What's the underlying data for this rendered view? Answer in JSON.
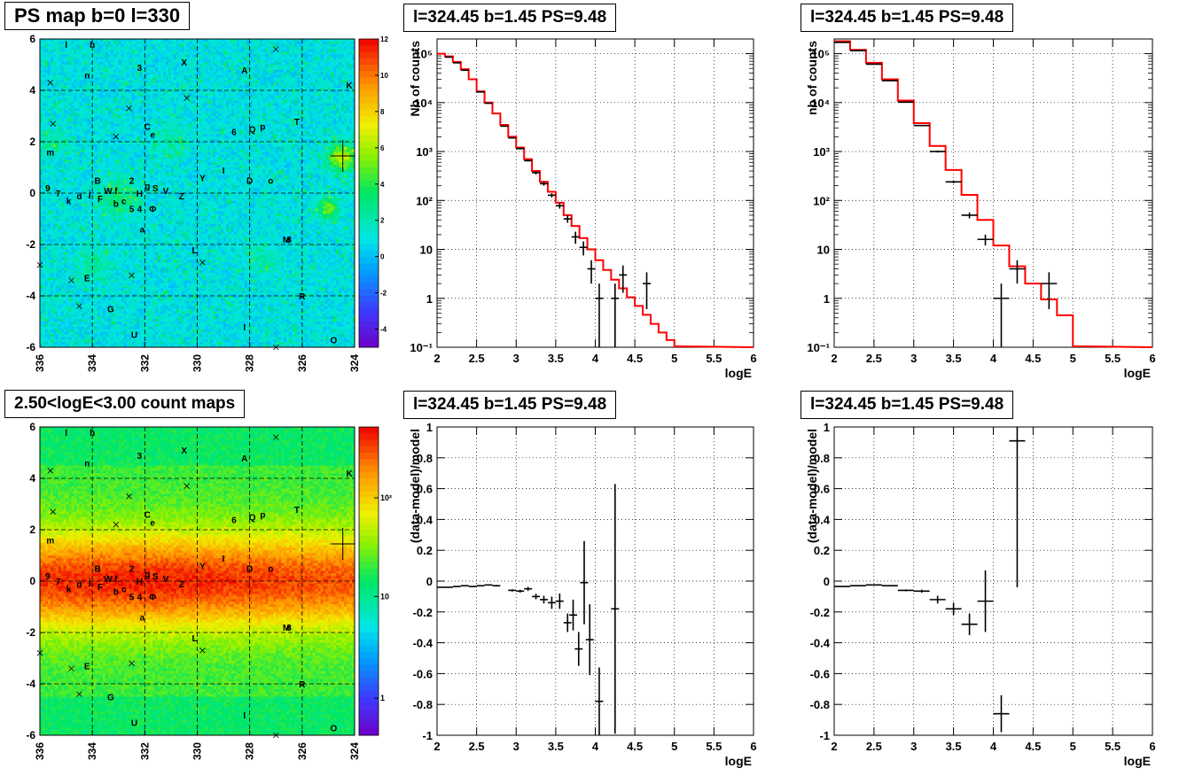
{
  "colors": {
    "model_line": "#ff0000",
    "data_marks": "#000000",
    "grid": "#000000",
    "map_background": "#00e6e6"
  },
  "maps": [
    {
      "title": "PS map b=0 l=330",
      "x_ticks": [
        "336",
        "334",
        "332",
        "330",
        "328",
        "326",
        "324"
      ],
      "x_range": [
        336,
        324
      ],
      "y_ticks": [
        "6",
        "4",
        "2",
        "0",
        "-2",
        "-4",
        "-6"
      ],
      "y_range": [
        -6,
        6
      ],
      "colorbar_ticks": [
        "12",
        "10",
        "8",
        "6",
        "4",
        "2",
        "0",
        "-2",
        "-4"
      ],
      "colorbar_range": [
        -5,
        12
      ],
      "palette": "ps"
    },
    {
      "title": "2.50<logE<3.00 count maps",
      "x_ticks": [
        "336",
        "334",
        "332",
        "330",
        "328",
        "326",
        "324"
      ],
      "x_range": [
        336,
        324
      ],
      "y_ticks": [
        "6",
        "4",
        "2",
        "0",
        "-2",
        "-4",
        "-6"
      ],
      "y_range": [
        -6,
        6
      ],
      "colorbar_ticks": [
        "10²",
        "10",
        "1"
      ],
      "palette": "counts"
    }
  ],
  "source_labels": [
    {
      "t": "l",
      "l": 335.0,
      "b": 5.8
    },
    {
      "t": "h",
      "l": 334.0,
      "b": 5.8
    },
    {
      "t": "3",
      "l": 332.2,
      "b": 4.9
    },
    {
      "t": "X",
      "l": 330.5,
      "b": 5.1
    },
    {
      "t": "A",
      "l": 328.2,
      "b": 4.8
    },
    {
      "t": "n",
      "l": 334.2,
      "b": 4.6
    },
    {
      "t": "K",
      "l": 324.2,
      "b": 4.2
    },
    {
      "t": "T",
      "l": 326.2,
      "b": 2.8
    },
    {
      "t": "C",
      "l": 331.9,
      "b": 2.6
    },
    {
      "t": "e",
      "l": 331.7,
      "b": 2.3
    },
    {
      "t": "6",
      "l": 328.6,
      "b": 2.4
    },
    {
      "t": "Q",
      "l": 327.9,
      "b": 2.5
    },
    {
      "t": "p",
      "l": 327.5,
      "b": 2.6
    },
    {
      "t": "m",
      "l": 335.6,
      "b": 1.6
    },
    {
      "t": "9",
      "l": 335.7,
      "b": 0.2
    },
    {
      "t": "7",
      "l": 335.3,
      "b": 0.0
    },
    {
      "t": "k",
      "l": 334.9,
      "b": -0.3
    },
    {
      "t": "d",
      "l": 334.5,
      "b": -0.1
    },
    {
      "t": "j",
      "l": 334.1,
      "b": 0.0
    },
    {
      "t": "B",
      "l": 333.8,
      "b": 0.5
    },
    {
      "t": "F",
      "l": 333.7,
      "b": -0.2
    },
    {
      "t": "W",
      "l": 333.4,
      "b": 0.1
    },
    {
      "t": "f",
      "l": 333.1,
      "b": 0.1
    },
    {
      "t": "b",
      "l": 333.1,
      "b": -0.4
    },
    {
      "t": "c",
      "l": 332.8,
      "b": -0.3
    },
    {
      "t": "2",
      "l": 332.5,
      "b": 0.5
    },
    {
      "t": "5",
      "l": 332.5,
      "b": -0.6
    },
    {
      "t": "4",
      "l": 332.2,
      "b": -0.6
    },
    {
      "t": "H",
      "l": 332.2,
      "b": -0.0
    },
    {
      "t": "g",
      "l": 331.9,
      "b": 0.3
    },
    {
      "t": "S",
      "l": 331.6,
      "b": 0.2
    },
    {
      "t": "Φ",
      "l": 331.7,
      "b": -0.6
    },
    {
      "t": "V",
      "l": 331.2,
      "b": 0.1
    },
    {
      "t": "Z",
      "l": 330.6,
      "b": -0.1
    },
    {
      "t": "Y",
      "l": 329.8,
      "b": 0.6
    },
    {
      "t": "I",
      "l": 329.0,
      "b": 0.9
    },
    {
      "t": "D",
      "l": 328.0,
      "b": 0.5
    },
    {
      "t": "o",
      "l": 327.2,
      "b": 0.5
    },
    {
      "t": "a",
      "l": 332.1,
      "b": -1.4
    },
    {
      "t": "M",
      "l": 326.6,
      "b": -1.8
    },
    {
      "t": "8",
      "l": 326.5,
      "b": -1.8
    },
    {
      "t": "L",
      "l": 330.1,
      "b": -2.2
    },
    {
      "t": "E",
      "l": 334.2,
      "b": -3.3
    },
    {
      "t": "R",
      "l": 326.0,
      "b": -4.0
    },
    {
      "t": "G",
      "l": 333.3,
      "b": -4.5
    },
    {
      "t": "I",
      "l": 328.2,
      "b": -5.2
    },
    {
      "t": "U",
      "l": 332.4,
      "b": -5.5
    },
    {
      "t": "O",
      "l": 324.8,
      "b": -5.7
    }
  ],
  "source_crosses": [
    [
      335.6,
      4.3
    ],
    [
      327.0,
      5.6
    ],
    [
      333.1,
      2.2
    ],
    [
      332.6,
      3.3
    ],
    [
      330.4,
      3.7
    ],
    [
      335.5,
      2.7
    ],
    [
      332.5,
      -3.2
    ],
    [
      329.8,
      -2.7
    ],
    [
      334.8,
      -3.4
    ],
    [
      334.5,
      -4.4
    ],
    [
      336.0,
      -2.8
    ],
    [
      327.0,
      -6.0
    ]
  ],
  "big_cross": [
    324.45,
    1.45
  ],
  "spectra": [
    {
      "title": "l=324.45 b=1.45 PS=9.48",
      "ylabel": "Nb of counts",
      "xlabel": "logE",
      "x_ticks": [
        "2",
        "2.5",
        "3",
        "3.5",
        "4",
        "4.5",
        "5",
        "5.5",
        "6"
      ],
      "x_range": [
        2,
        6
      ],
      "y_log_range": [
        -1,
        5.3
      ],
      "y_tick_exps": [
        -1,
        0,
        1,
        2,
        3,
        4,
        5
      ],
      "y_tick_labels": [
        "10⁻¹",
        "1",
        "10",
        "10²",
        "10³",
        "10⁴",
        "10⁵"
      ],
      "bin_width": 0.1,
      "model_steps": [
        [
          2.0,
          100000
        ],
        [
          2.1,
          88000
        ],
        [
          2.2,
          68000
        ],
        [
          2.3,
          48000
        ],
        [
          2.4,
          30000
        ],
        [
          2.5,
          17000
        ],
        [
          2.6,
          10000
        ],
        [
          2.7,
          6000
        ],
        [
          2.8,
          3500
        ],
        [
          2.9,
          2000
        ],
        [
          3.0,
          1200
        ],
        [
          3.1,
          700
        ],
        [
          3.2,
          400
        ],
        [
          3.3,
          240
        ],
        [
          3.4,
          150
        ],
        [
          3.5,
          90
        ],
        [
          3.6,
          50
        ],
        [
          3.7,
          30
        ],
        [
          3.8,
          17
        ],
        [
          3.9,
          10
        ],
        [
          4.0,
          6
        ],
        [
          4.1,
          3.8
        ],
        [
          4.2,
          2.4
        ],
        [
          4.3,
          1.6
        ],
        [
          4.4,
          1.05
        ],
        [
          4.5,
          0.7
        ],
        [
          4.6,
          0.46
        ],
        [
          4.7,
          0.3
        ],
        [
          4.8,
          0.2
        ],
        [
          4.9,
          0.14
        ],
        [
          5.0,
          0.1
        ]
      ],
      "data_points": [
        {
          "x": 2.15,
          "y": 85000,
          "lo": 85000,
          "hi": 85000
        },
        {
          "x": 2.25,
          "y": 65000,
          "lo": 65000,
          "hi": 65000
        },
        {
          "x": 2.35,
          "y": 46000,
          "lo": 46000,
          "hi": 46000
        },
        {
          "x": 2.55,
          "y": 16500,
          "lo": 16500,
          "hi": 16500
        },
        {
          "x": 2.65,
          "y": 9700,
          "lo": 9700,
          "hi": 9700
        },
        {
          "x": 2.85,
          "y": 3300,
          "lo": 3300,
          "hi": 3300
        },
        {
          "x": 2.95,
          "y": 1900,
          "lo": 1900,
          "hi": 1900
        },
        {
          "x": 3.05,
          "y": 1150,
          "lo": 1100,
          "hi": 1200
        },
        {
          "x": 3.15,
          "y": 650,
          "lo": 620,
          "hi": 690
        },
        {
          "x": 3.25,
          "y": 370,
          "lo": 340,
          "hi": 400
        },
        {
          "x": 3.35,
          "y": 220,
          "lo": 200,
          "hi": 240
        },
        {
          "x": 3.45,
          "y": 128,
          "lo": 115,
          "hi": 140
        },
        {
          "x": 3.55,
          "y": 78,
          "lo": 68,
          "hi": 88
        },
        {
          "x": 3.65,
          "y": 42,
          "lo": 35,
          "hi": 50
        },
        {
          "x": 3.75,
          "y": 18,
          "lo": 13,
          "hi": 23
        },
        {
          "x": 3.85,
          "y": 11,
          "lo": 7.5,
          "hi": 14.5
        },
        {
          "x": 3.95,
          "y": 4,
          "lo": 2,
          "hi": 6
        },
        {
          "x": 4.05,
          "y": 1,
          "lo": 0.1,
          "hi": 2
        },
        {
          "x": 4.25,
          "y": 1,
          "lo": 0.1,
          "hi": 2
        },
        {
          "x": 4.35,
          "y": 3,
          "lo": 1.3,
          "hi": 4.7
        },
        {
          "x": 4.65,
          "y": 2,
          "lo": 0.6,
          "hi": 3.4
        }
      ]
    },
    {
      "title": "l=324.45 b=1.45 PS=9.48",
      "ylabel": "nb of counts",
      "xlabel": "logE",
      "x_ticks": [
        "2",
        "2.5",
        "3",
        "3.5",
        "4",
        "4.5",
        "5",
        "5.5",
        "6"
      ],
      "x_range": [
        2,
        6
      ],
      "y_log_range": [
        -1,
        5.3
      ],
      "y_tick_exps": [
        -1,
        0,
        1,
        2,
        3,
        4,
        5
      ],
      "y_tick_labels": [
        "10⁻¹",
        "1",
        "10",
        "10²",
        "10³",
        "10⁴",
        "10⁵"
      ],
      "bin_width": 0.2,
      "model_steps": [
        [
          2.0,
          180000
        ],
        [
          2.2,
          120000
        ],
        [
          2.4,
          65000
        ],
        [
          2.6,
          30000
        ],
        [
          2.8,
          11000
        ],
        [
          3.0,
          3800
        ],
        [
          3.2,
          1300
        ],
        [
          3.4,
          420
        ],
        [
          3.6,
          130
        ],
        [
          3.8,
          40
        ],
        [
          4.0,
          12
        ],
        [
          4.2,
          4.5
        ],
        [
          4.4,
          2.0
        ],
        [
          4.6,
          0.95
        ],
        [
          4.8,
          0.45
        ],
        [
          5.0,
          0.1
        ]
      ],
      "data_points": [
        {
          "x": 2.1,
          "y": 170000,
          "lo": 170000,
          "hi": 170000
        },
        {
          "x": 2.3,
          "y": 115000,
          "lo": 115000,
          "hi": 115000
        },
        {
          "x": 2.5,
          "y": 61000,
          "lo": 61000,
          "hi": 61000
        },
        {
          "x": 2.7,
          "y": 28000,
          "lo": 28000,
          "hi": 28000
        },
        {
          "x": 2.9,
          "y": 10200,
          "lo": 10000,
          "hi": 10400
        },
        {
          "x": 3.1,
          "y": 3400,
          "lo": 3300,
          "hi": 3500
        },
        {
          "x": 3.3,
          "y": 1000,
          "lo": 950,
          "hi": 1050
        },
        {
          "x": 3.5,
          "y": 240,
          "lo": 225,
          "hi": 255
        },
        {
          "x": 3.7,
          "y": 50,
          "lo": 43,
          "hi": 57
        },
        {
          "x": 3.9,
          "y": 16,
          "lo": 12,
          "hi": 20
        },
        {
          "x": 4.1,
          "y": 1,
          "lo": 0.1,
          "hi": 2
        },
        {
          "x": 4.3,
          "y": 4,
          "lo": 2,
          "hi": 6
        },
        {
          "x": 4.7,
          "y": 2,
          "lo": 0.6,
          "hi": 3.4
        }
      ]
    }
  ],
  "residuals": [
    {
      "title": "l=324.45 b=1.45 PS=9.48",
      "ylabel": "(data-model)/model",
      "xlabel": "logE",
      "x_ticks": [
        "2",
        "2.5",
        "3",
        "3.5",
        "4",
        "4.5",
        "5",
        "5.5",
        "6"
      ],
      "x_range": [
        2,
        6
      ],
      "y_range": [
        -1,
        1
      ],
      "y_ticks": [
        "-1",
        "-0.8",
        "-0.6",
        "-0.4",
        "-0.2",
        "0",
        "0.2",
        "0.4",
        "0.6",
        "0.8",
        "1"
      ],
      "bin_width": 0.1,
      "points": [
        {
          "x": 2.05,
          "y": -0.04,
          "e": 0.003
        },
        {
          "x": 2.15,
          "y": -0.04,
          "e": 0.003
        },
        {
          "x": 2.25,
          "y": -0.035,
          "e": 0.003
        },
        {
          "x": 2.35,
          "y": -0.03,
          "e": 0.003
        },
        {
          "x": 2.45,
          "y": -0.035,
          "e": 0.003
        },
        {
          "x": 2.55,
          "y": -0.03,
          "e": 0.004
        },
        {
          "x": 2.65,
          "y": -0.025,
          "e": 0.004
        },
        {
          "x": 2.75,
          "y": -0.03,
          "e": 0.005
        },
        {
          "x": 2.95,
          "y": -0.06,
          "e": 0.007
        },
        {
          "x": 3.05,
          "y": -0.065,
          "e": 0.009
        },
        {
          "x": 3.15,
          "y": -0.05,
          "e": 0.013
        },
        {
          "x": 3.25,
          "y": -0.1,
          "e": 0.018
        },
        {
          "x": 3.35,
          "y": -0.12,
          "e": 0.025
        },
        {
          "x": 3.45,
          "y": -0.14,
          "e": 0.04
        },
        {
          "x": 3.55,
          "y": -0.13,
          "e": 0.05
        },
        {
          "x": 3.65,
          "y": -0.27,
          "e": 0.06
        },
        {
          "x": 3.72,
          "y": -0.22,
          "e": 0.1
        },
        {
          "x": 3.79,
          "y": -0.44,
          "e": 0.11
        },
        {
          "x": 3.86,
          "y": -0.01,
          "e": 0.27
        },
        {
          "x": 3.93,
          "y": -0.38,
          "e": 0.23
        },
        {
          "x": 4.05,
          "y": -0.78,
          "e": 0.22
        },
        {
          "x": 4.25,
          "y": -0.18,
          "e": 0.81
        }
      ]
    },
    {
      "title": "l=324.45 b=1.45 PS=9.48",
      "ylabel": "(data-model)/model",
      "xlabel": "logE",
      "x_ticks": [
        "2",
        "2.5",
        "3",
        "3.5",
        "4",
        "4.5",
        "5",
        "5.5",
        "6"
      ],
      "x_range": [
        2,
        6
      ],
      "y_range": [
        -1,
        1
      ],
      "y_ticks": [
        "-1",
        "-0.8",
        "-0.6",
        "-0.4",
        "-0.2",
        "0",
        "0.2",
        "0.4",
        "0.6",
        "0.8",
        "1"
      ],
      "bin_width": 0.2,
      "points": [
        {
          "x": 2.1,
          "y": -0.035,
          "e": 0.002
        },
        {
          "x": 2.3,
          "y": -0.03,
          "e": 0.002
        },
        {
          "x": 2.5,
          "y": -0.025,
          "e": 0.003
        },
        {
          "x": 2.7,
          "y": -0.03,
          "e": 0.004
        },
        {
          "x": 2.9,
          "y": -0.06,
          "e": 0.006
        },
        {
          "x": 3.1,
          "y": -0.065,
          "e": 0.01
        },
        {
          "x": 3.3,
          "y": -0.12,
          "e": 0.025
        },
        {
          "x": 3.5,
          "y": -0.18,
          "e": 0.04
        },
        {
          "x": 3.7,
          "y": -0.28,
          "e": 0.07
        },
        {
          "x": 3.9,
          "y": -0.13,
          "e": 0.2
        },
        {
          "x": 4.1,
          "y": -0.86,
          "e": 0.12
        },
        {
          "x": 4.3,
          "y": 0.91,
          "e": 0.95
        }
      ]
    }
  ]
}
